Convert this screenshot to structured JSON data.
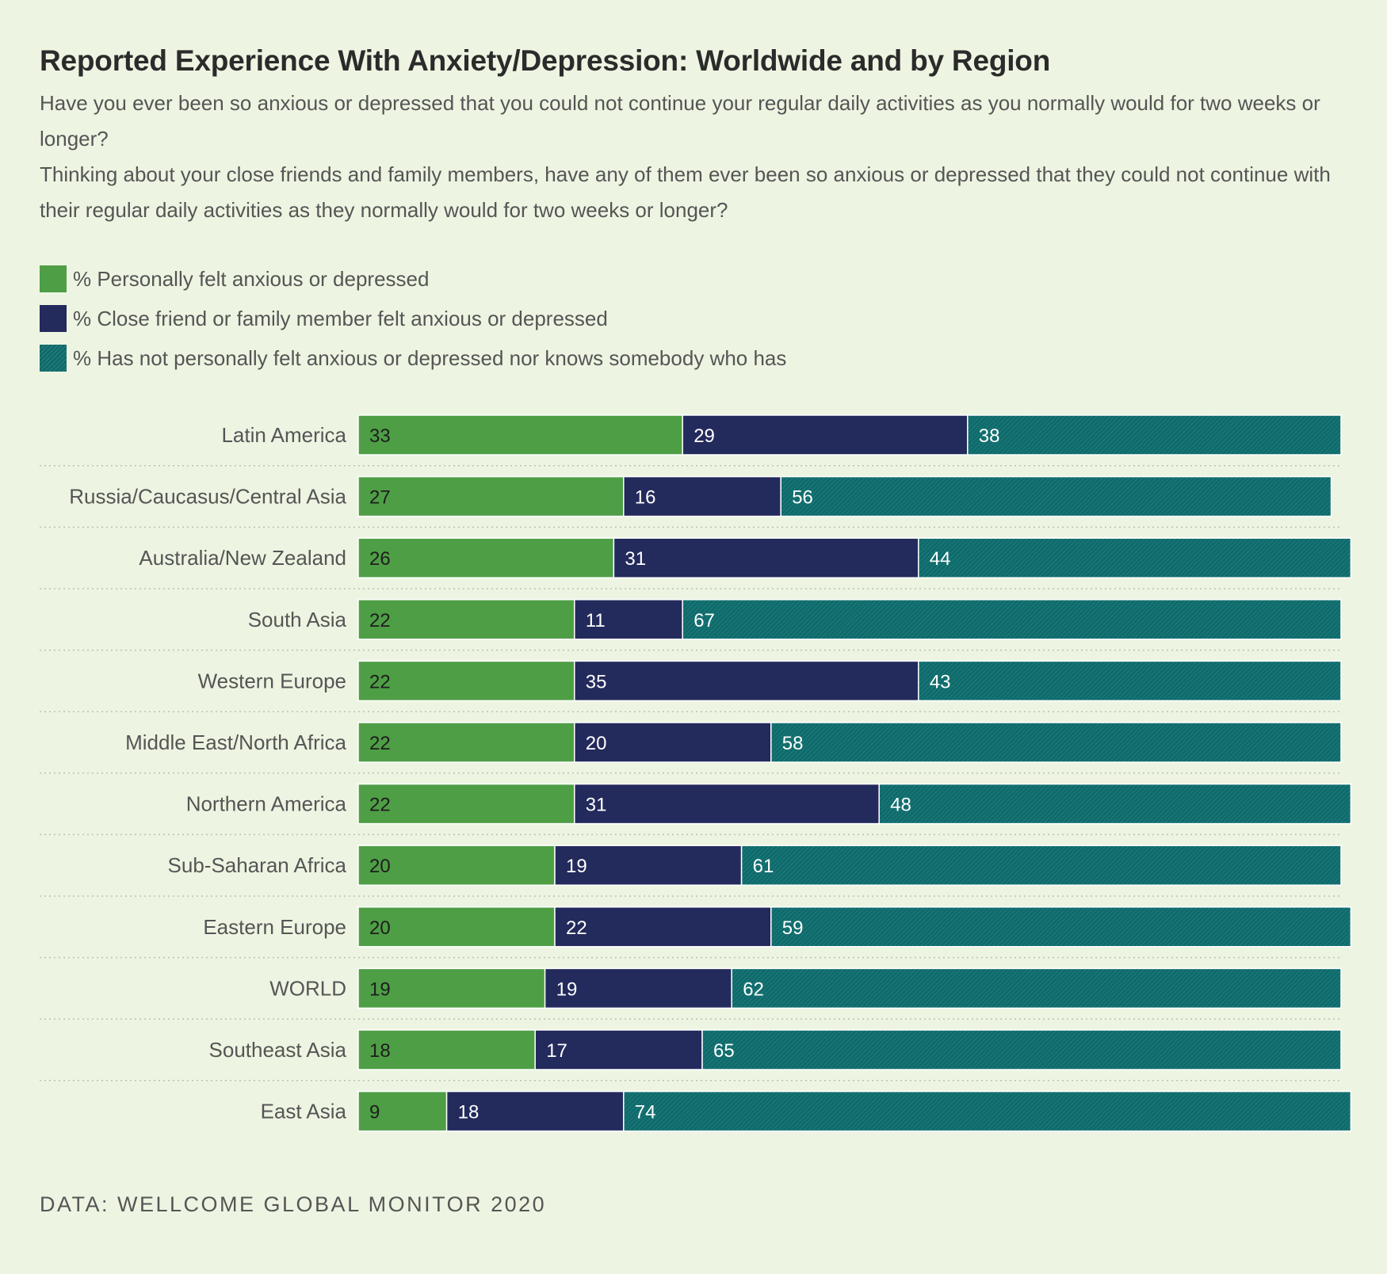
{
  "title": "Reported Experience With Anxiety/Depression: Worldwide and by Region",
  "subtitle": [
    "Have you ever been so anxious or depressed that you could not continue your regular daily activities as you normally would for two weeks or longer?",
    "Thinking about your close friends and family members, have any of them ever been so anxious or depressed that they could not continue with their regular daily activities as they normally would for two weeks or longer?"
  ],
  "source": "DATA:  WELLCOME GLOBAL MONITOR 2020",
  "colors": {
    "personal": "#4e9e45",
    "friend": "#232a5c",
    "neither": "#0f6b6b",
    "background": "#edf5e2"
  },
  "chart_data": {
    "type": "bar",
    "orientation": "horizontal",
    "stacked": true,
    "grid": false,
    "legend_position": "top-left",
    "xlim": [
      0,
      100
    ],
    "categories": [
      "Latin America",
      "Russia/Caucasus/Central Asia",
      "Australia/New Zealand",
      "South Asia",
      "Western Europe",
      "Middle East/North Africa",
      "Northern America",
      "Sub-Saharan Africa",
      "Eastern Europe",
      "WORLD",
      "Southeast Asia",
      "East Asia"
    ],
    "series": [
      {
        "name": "% Personally felt anxious or depressed",
        "color": "#4e9e45",
        "values": [
          33,
          27,
          26,
          22,
          22,
          22,
          22,
          20,
          20,
          19,
          18,
          9
        ]
      },
      {
        "name": "% Close friend or family member felt anxious or depressed",
        "color": "#232a5c",
        "values": [
          29,
          16,
          31,
          11,
          35,
          20,
          31,
          19,
          22,
          19,
          17,
          18
        ]
      },
      {
        "name": "% Has not personally felt anxious or depressed nor knows somebody who has",
        "color": "#0f6b6b",
        "pattern": "hatched",
        "values": [
          38,
          56,
          44,
          67,
          43,
          58,
          48,
          61,
          59,
          62,
          65,
          74
        ]
      }
    ]
  }
}
